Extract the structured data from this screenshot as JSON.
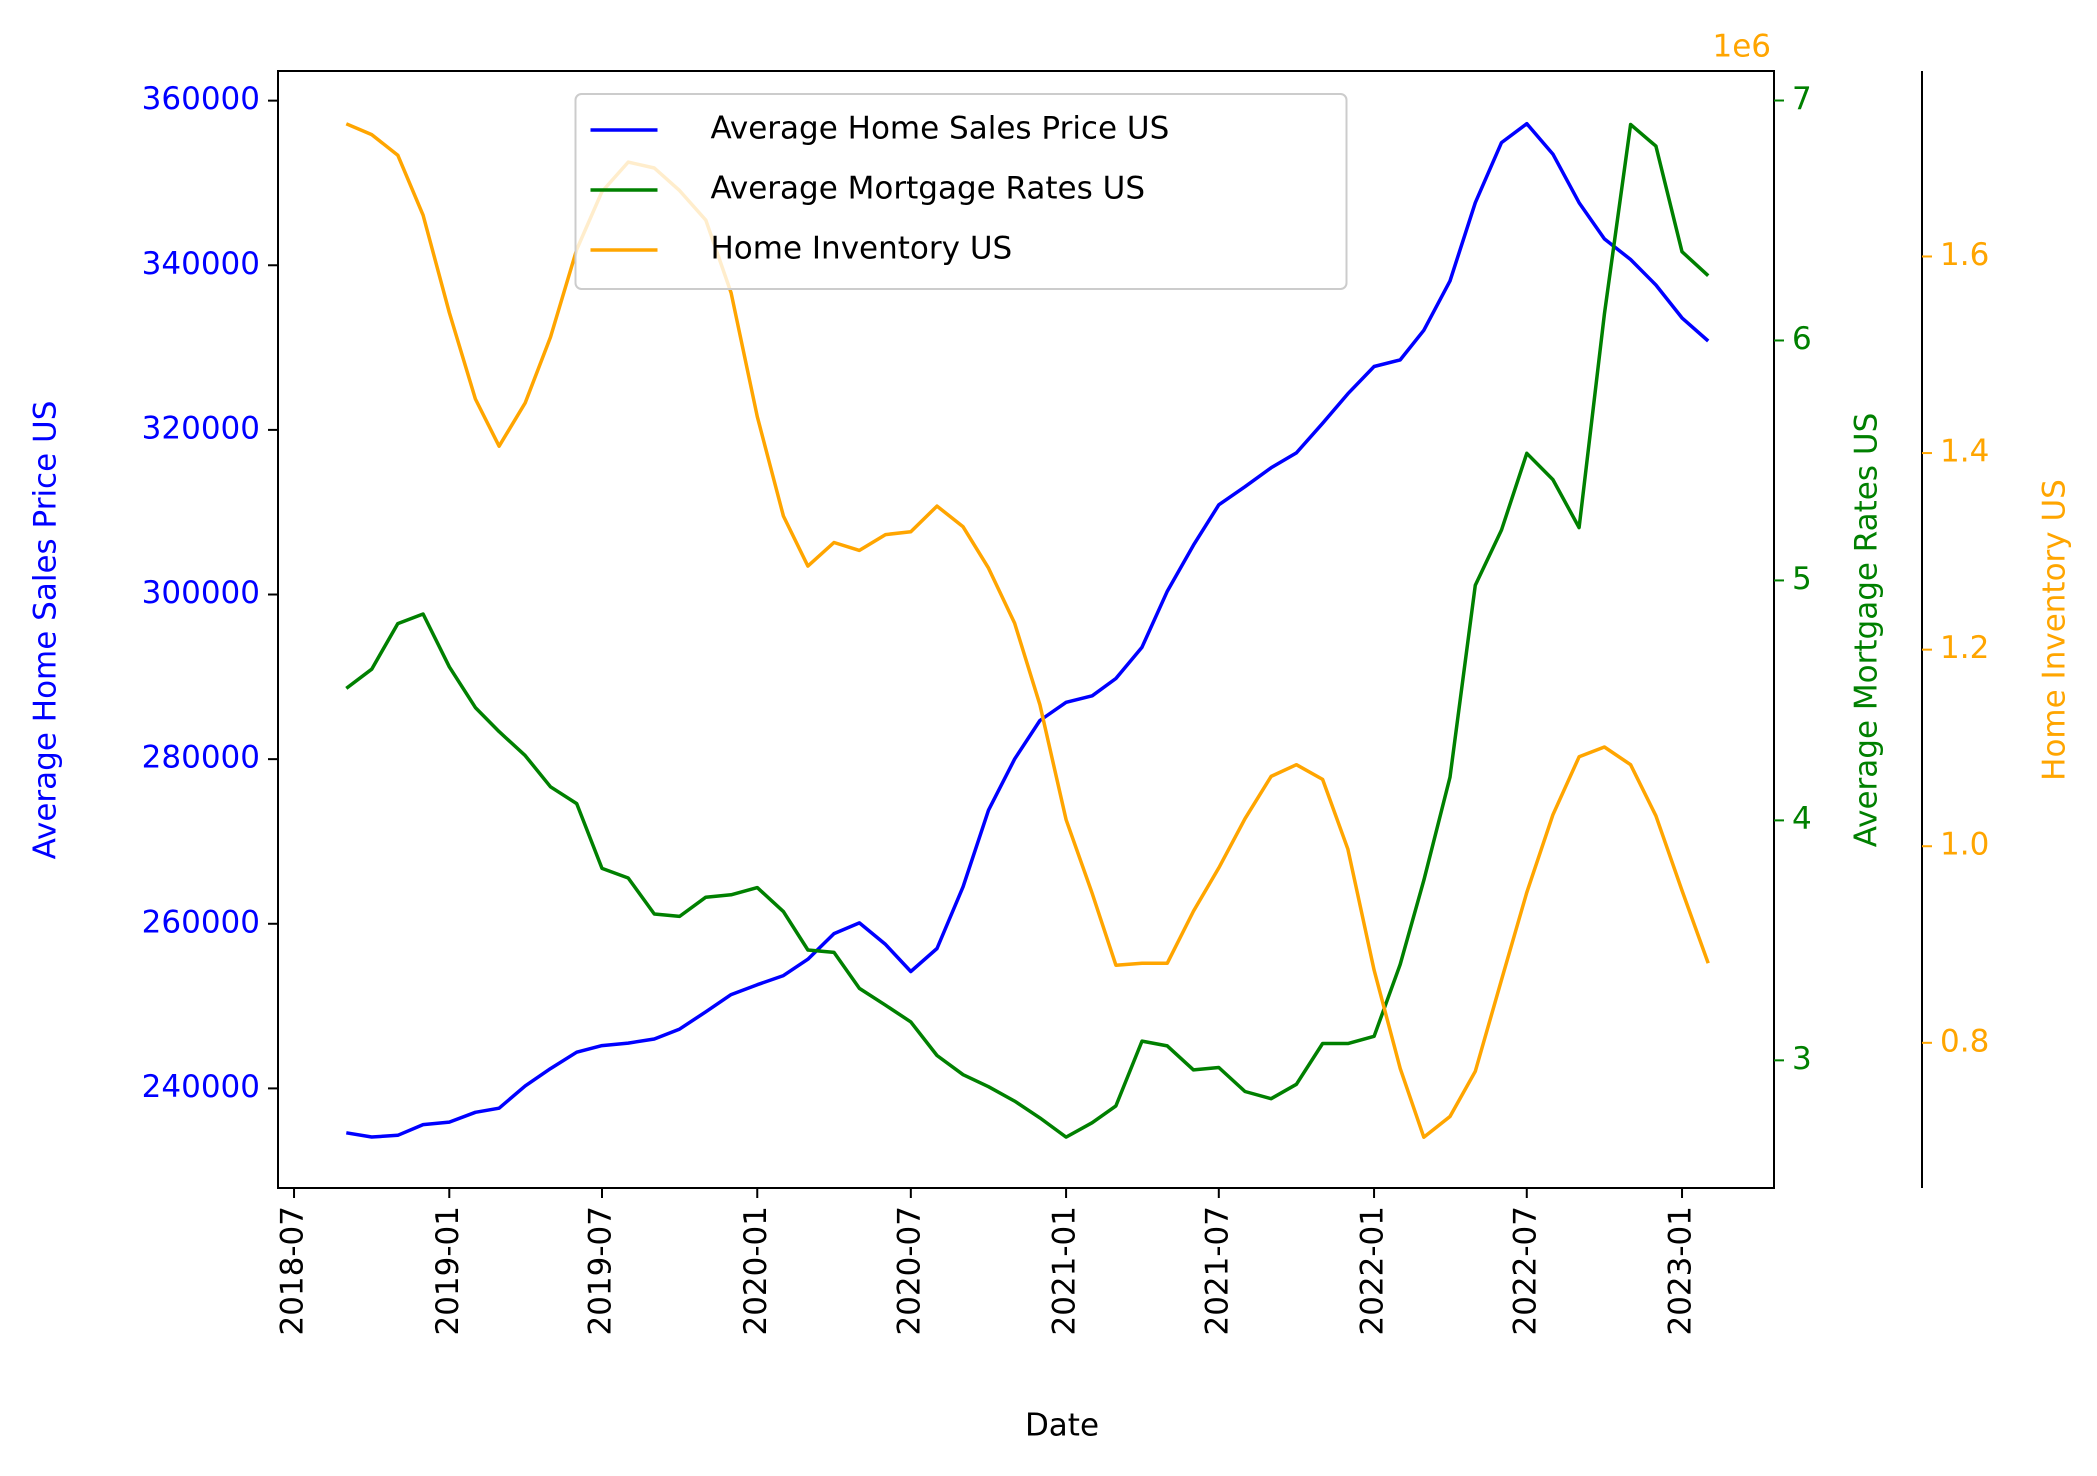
{
  "chart_data": {
    "type": "line",
    "xlabel": "Date",
    "ylabel": "Average Home Sales Price US",
    "y2label": "Average Mortgage Rates US",
    "y3label": "Home Inventory US",
    "y3_offset_label": "1e6",
    "x": [
      "2018-09",
      "2018-10",
      "2018-11",
      "2018-12",
      "2019-01",
      "2019-02",
      "2019-03",
      "2019-04",
      "2019-05",
      "2019-06",
      "2019-07",
      "2019-08",
      "2019-09",
      "2019-10",
      "2019-11",
      "2019-12",
      "2020-01",
      "2020-02",
      "2020-03",
      "2020-04",
      "2020-05",
      "2020-06",
      "2020-07",
      "2020-08",
      "2020-09",
      "2020-10",
      "2020-11",
      "2020-12",
      "2021-01",
      "2021-02",
      "2021-03",
      "2021-04",
      "2021-05",
      "2021-06",
      "2021-07",
      "2021-08",
      "2021-09",
      "2021-10",
      "2021-11",
      "2021-12",
      "2022-01",
      "2022-02",
      "2022-03",
      "2022-04",
      "2022-05",
      "2022-06",
      "2022-07",
      "2022-08",
      "2022-09",
      "2022-10",
      "2022-11",
      "2022-12",
      "2023-01",
      "2023-02"
    ],
    "xlim": [
      "2018-06-12",
      "2023-04-20"
    ],
    "xticks": [
      "2018-07",
      "2019-01",
      "2019-07",
      "2020-01",
      "2020-07",
      "2021-01",
      "2021-07",
      "2022-01",
      "2022-07",
      "2023-01"
    ],
    "ylim": [
      227900,
      363600
    ],
    "yticks": [
      240000,
      260000,
      280000,
      300000,
      320000,
      340000,
      360000
    ],
    "y2lim": [
      2.468,
      7.123
    ],
    "y2ticks": [
      3,
      4,
      5,
      6,
      7
    ],
    "y3lim": [
      652300,
      1788700
    ],
    "y3ticks": [
      {
        "value": 800000,
        "label": "0.8"
      },
      {
        "value": 1000000,
        "label": "1.0"
      },
      {
        "value": 1200000,
        "label": "1.2"
      },
      {
        "value": 1400000,
        "label": "1.4"
      },
      {
        "value": 1600000,
        "label": "1.6"
      }
    ],
    "legend": "upper center",
    "series": [
      {
        "name": "Average Home Sales Price US",
        "color": "blue",
        "axis": "y",
        "values": [
          234600,
          234100,
          234300,
          235600,
          235900,
          237100,
          237600,
          240300,
          242400,
          244400,
          245200,
          245500,
          246000,
          247200,
          249300,
          251400,
          252600,
          253700,
          255700,
          258800,
          260100,
          257500,
          254200,
          257000,
          264500,
          273800,
          280000,
          284700,
          286900,
          287700,
          289800,
          293600,
          300400,
          306000,
          310900,
          313100,
          315400,
          317200,
          320800,
          324400,
          327700,
          328500,
          332100,
          338100,
          347600,
          354900,
          357200,
          353500,
          347600,
          343200,
          340700,
          337600,
          333600,
          330800
        ]
      },
      {
        "name": "Average Mortgage Rates US",
        "color": "green",
        "axis": "y2",
        "values": [
          4.55,
          4.63,
          4.82,
          4.86,
          4.64,
          4.47,
          4.37,
          4.27,
          4.14,
          4.07,
          3.8,
          3.76,
          3.61,
          3.6,
          3.68,
          3.69,
          3.72,
          3.62,
          3.46,
          3.45,
          3.3,
          3.23,
          3.16,
          3.02,
          2.94,
          2.89,
          2.83,
          2.76,
          2.68,
          2.74,
          2.81,
          3.08,
          3.06,
          2.96,
          2.97,
          2.87,
          2.84,
          2.9,
          3.07,
          3.07,
          3.1,
          3.4,
          3.75,
          4.18,
          4.98,
          5.21,
          5.53,
          5.42,
          5.22,
          6.11,
          6.9,
          6.81,
          6.37,
          6.27
        ]
      },
      {
        "name": "Home Inventory US",
        "color": "orange",
        "axis": "y3",
        "values": [
          1735000,
          1724000,
          1703000,
          1642000,
          1543000,
          1455000,
          1407000,
          1451000,
          1518000,
          1607000,
          1666000,
          1696000,
          1690000,
          1667000,
          1637000,
          1563000,
          1437000,
          1336000,
          1285000,
          1309000,
          1301000,
          1317000,
          1320000,
          1346000,
          1325000,
          1283000,
          1227000,
          1144000,
          1027000,
          952000,
          879000,
          881000,
          881000,
          934000,
          978000,
          1028000,
          1071000,
          1083000,
          1068000,
          997000,
          874000,
          774000,
          704000,
          725000,
          771000,
          864000,
          953000,
          1032000,
          1091000,
          1101000,
          1083000,
          1031000,
          955000,
          881000
        ]
      }
    ]
  }
}
